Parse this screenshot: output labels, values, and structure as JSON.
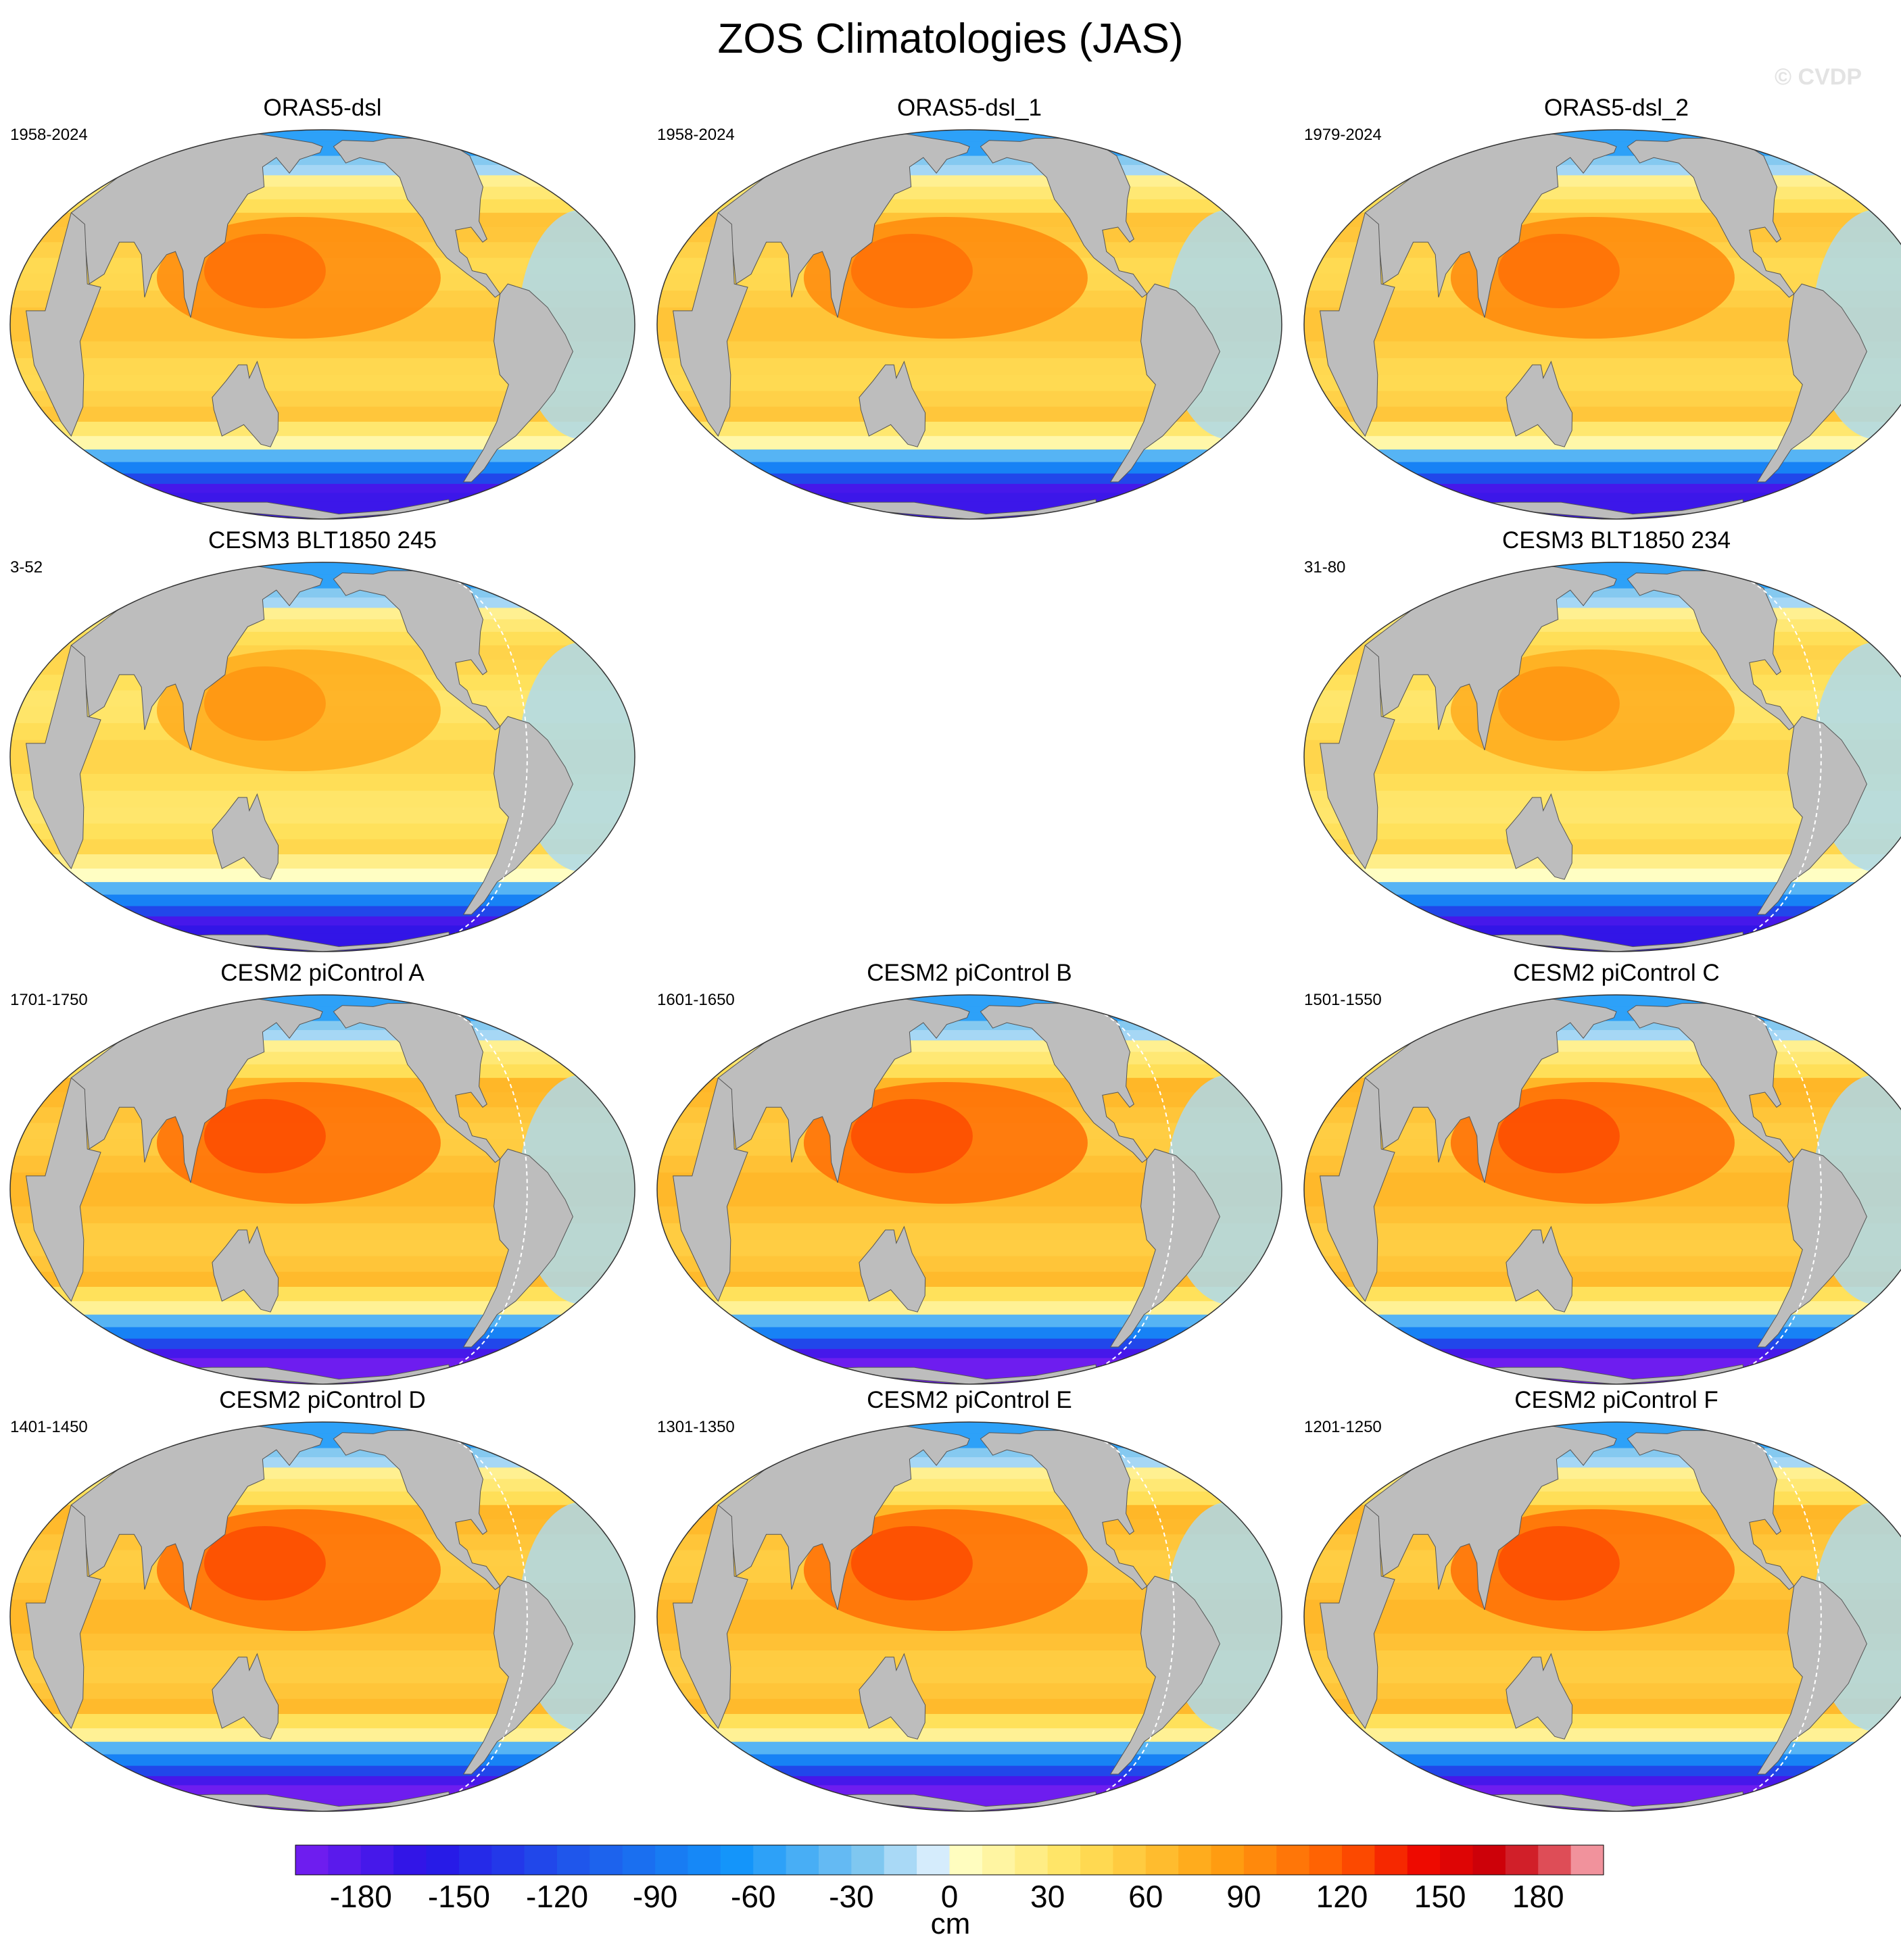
{
  "figure": {
    "title": "ZOS Climatologies (JAS)",
    "watermark": "© CVDP"
  },
  "chart_data": {
    "type": "map-panels",
    "variable": "ZOS",
    "season": "JAS",
    "units": "cm",
    "colorbar": {
      "min": -200,
      "max": 200,
      "step": 10,
      "tick_values": [
        -180,
        -150,
        -120,
        -90,
        -60,
        -30,
        0,
        30,
        60,
        90,
        120,
        150,
        180
      ],
      "tick_labels": [
        "-180",
        "-150",
        "-120",
        "-90",
        "-60",
        "-30",
        "0",
        "30",
        "60",
        "90",
        "120",
        "150",
        "180"
      ],
      "label": "cm"
    },
    "panels": [
      {
        "title": "ORAS5-dsl",
        "period": "1958-2024",
        "row": 0,
        "col": 0,
        "pacific_max": 95,
        "southern_min": -170,
        "seam": false
      },
      {
        "title": "ORAS5-dsl_1",
        "period": "1958-2024",
        "row": 0,
        "col": 1,
        "pacific_max": 95,
        "southern_min": -170,
        "seam": false
      },
      {
        "title": "ORAS5-dsl_2",
        "period": "1979-2024",
        "row": 0,
        "col": 2,
        "pacific_max": 95,
        "southern_min": -170,
        "seam": false
      },
      {
        "title": "CESM3 BLT1850 245",
        "period": "3-52",
        "row": 1,
        "col": 0,
        "pacific_max": 75,
        "southern_min": -165,
        "seam": true
      },
      {
        "title": "CESM3 BLT1850 234",
        "period": "31-80",
        "row": 1,
        "col": 2,
        "pacific_max": 75,
        "southern_min": -165,
        "seam": true
      },
      {
        "title": "CESM2 piControl A",
        "period": "1701-1750",
        "row": 2,
        "col": 0,
        "pacific_max": 110,
        "southern_min": -195,
        "seam": true
      },
      {
        "title": "CESM2 piControl B",
        "period": "1601-1650",
        "row": 2,
        "col": 1,
        "pacific_max": 110,
        "southern_min": -195,
        "seam": true
      },
      {
        "title": "CESM2 piControl C",
        "period": "1501-1550",
        "row": 2,
        "col": 2,
        "pacific_max": 110,
        "southern_min": -195,
        "seam": true
      },
      {
        "title": "CESM2 piControl D",
        "period": "1401-1450",
        "row": 3,
        "col": 0,
        "pacific_max": 110,
        "southern_min": -195,
        "seam": true
      },
      {
        "title": "CESM2 piControl E",
        "period": "1301-1350",
        "row": 3,
        "col": 1,
        "pacific_max": 110,
        "southern_min": -195,
        "seam": true
      },
      {
        "title": "CESM2 piControl F",
        "period": "1201-1250",
        "row": 3,
        "col": 2,
        "pacific_max": 110,
        "southern_min": -195,
        "seam": true
      }
    ]
  }
}
